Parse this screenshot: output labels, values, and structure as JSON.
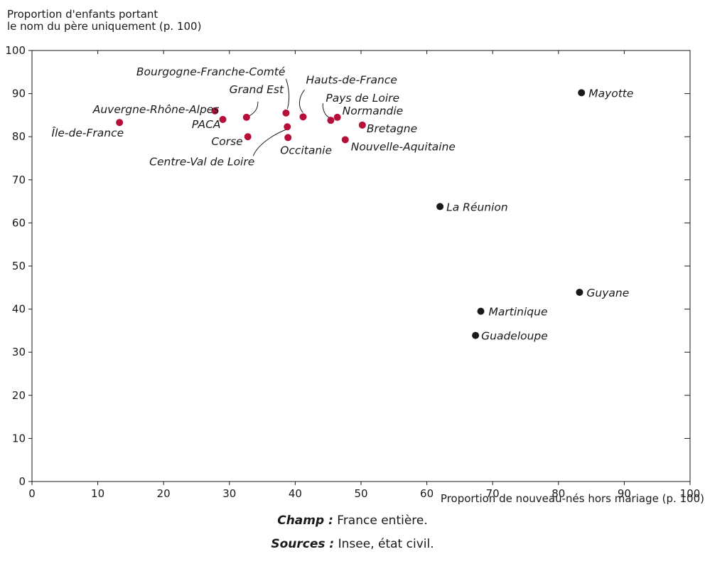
{
  "chart_data": {
    "type": "scatter",
    "ylabel_lines": [
      "Proportion d'enfants portant",
      "le nom du père uniquement (p. 100)"
    ],
    "xlabel": "Proportion de nouveau-nés hors mariage (p. 100)",
    "xlim": [
      0,
      100
    ],
    "ylim": [
      0,
      100
    ],
    "xticks": [
      0,
      10,
      20,
      30,
      40,
      50,
      60,
      70,
      80,
      90,
      100
    ],
    "yticks": [
      0,
      10,
      20,
      30,
      40,
      50,
      60,
      70,
      80,
      90,
      100
    ],
    "colors": {
      "metropole": "#b5103a",
      "outremer": "#1a1a1a"
    },
    "points": [
      {
        "label": "Île-de-France",
        "x": 13.3,
        "y": 83.3,
        "group": "metropole"
      },
      {
        "label": "Auvergne-Rhône-Alpes",
        "x": 27.8,
        "y": 86.0,
        "group": "metropole"
      },
      {
        "label": "PACA",
        "x": 29.0,
        "y": 84.0,
        "group": "metropole"
      },
      {
        "label": "Grand Est",
        "x": 32.6,
        "y": 84.5,
        "group": "metropole"
      },
      {
        "label": "Corse",
        "x": 32.8,
        "y": 80.0,
        "group": "metropole"
      },
      {
        "label": "Bourgogne-Franche-Comté",
        "x": 38.6,
        "y": 85.5,
        "group": "metropole"
      },
      {
        "label": "Centre-Val de Loire",
        "x": 38.8,
        "y": 82.3,
        "group": "metropole"
      },
      {
        "label": "Occitanie",
        "x": 38.9,
        "y": 79.8,
        "group": "metropole"
      },
      {
        "label": "Hauts-de-France",
        "x": 41.2,
        "y": 84.6,
        "group": "metropole"
      },
      {
        "label": "Pays de Loire",
        "x": 45.4,
        "y": 83.8,
        "group": "metropole"
      },
      {
        "label": "Normandie",
        "x": 46.4,
        "y": 84.5,
        "group": "metropole"
      },
      {
        "label": "Nouvelle-Aquitaine",
        "x": 47.6,
        "y": 79.3,
        "group": "metropole"
      },
      {
        "label": "Bretagne",
        "x": 50.2,
        "y": 82.7,
        "group": "metropole"
      },
      {
        "label": "La Réunion",
        "x": 62.0,
        "y": 63.8,
        "group": "outremer"
      },
      {
        "label": "Mayotte",
        "x": 83.5,
        "y": 90.2,
        "group": "outremer"
      },
      {
        "label": "Guyane",
        "x": 83.2,
        "y": 43.9,
        "group": "outremer"
      },
      {
        "label": "Martinique",
        "x": 68.2,
        "y": 39.5,
        "group": "outremer"
      },
      {
        "label": "Guadeloupe",
        "x": 67.4,
        "y": 33.9,
        "group": "outremer"
      }
    ]
  },
  "footer": {
    "champ_label": "Champ :",
    "champ_text": " France entière.",
    "sources_label": "Sources :",
    "sources_text": " Insee, état civil."
  }
}
